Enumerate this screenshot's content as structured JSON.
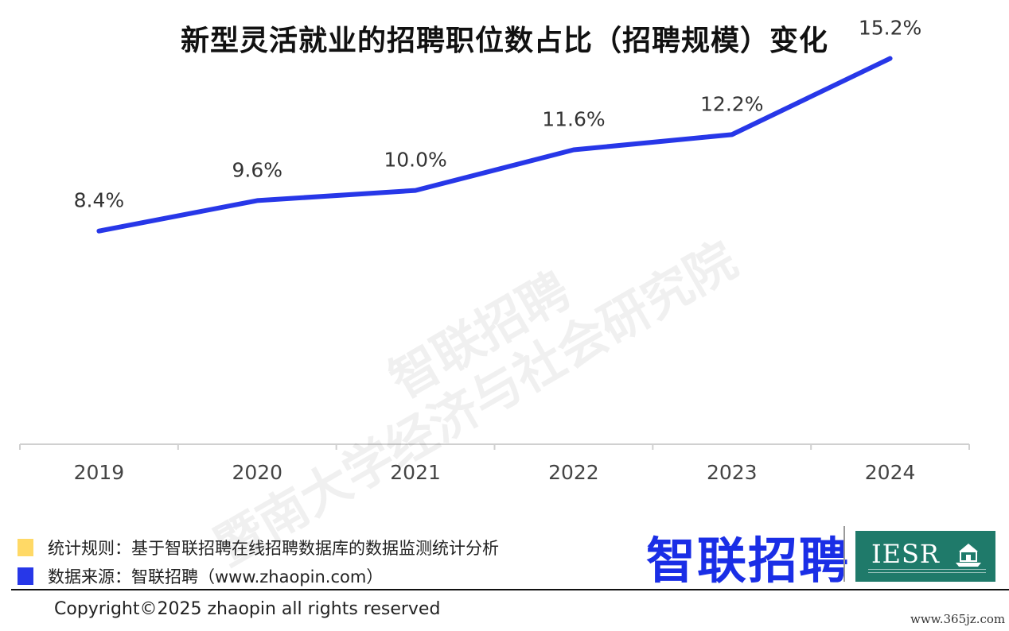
{
  "watermarks": {
    "line1": "智联招聘",
    "line2": "暨南大学经济与社会研究院"
  },
  "chart_data": {
    "type": "line",
    "title": "新型灵活就业的招聘职位数占比（招聘规模）变化",
    "categories": [
      "2019",
      "2020",
      "2021",
      "2022",
      "2023",
      "2024"
    ],
    "values": [
      8.4,
      9.6,
      10.0,
      11.6,
      12.2,
      15.2
    ],
    "value_labels": [
      "8.4%",
      "9.6%",
      "10.0%",
      "11.6%",
      "12.2%",
      "15.2%"
    ],
    "xlabel": "",
    "ylabel": "",
    "ylim": [
      0,
      16
    ],
    "grid": false,
    "line_color": "#2737e8"
  },
  "legend": {
    "rule": {
      "label": "统计规则：基于智联招聘在线招聘数据库的数据监测统计分析",
      "color": "#ffd966"
    },
    "source": {
      "label": "数据来源：智联招聘（www.zhaopin.com）",
      "color": "#2737e8"
    }
  },
  "brand": {
    "zhaopin_logo": "智联招聘",
    "zhaopin_color": "#1a2ee6",
    "iesr_logo": "IESR",
    "iesr_color": "#1f7a6a"
  },
  "footer": {
    "copyright": "Copyright©2025 zhaopin all rights reserved",
    "site": "www.365jz.com"
  }
}
